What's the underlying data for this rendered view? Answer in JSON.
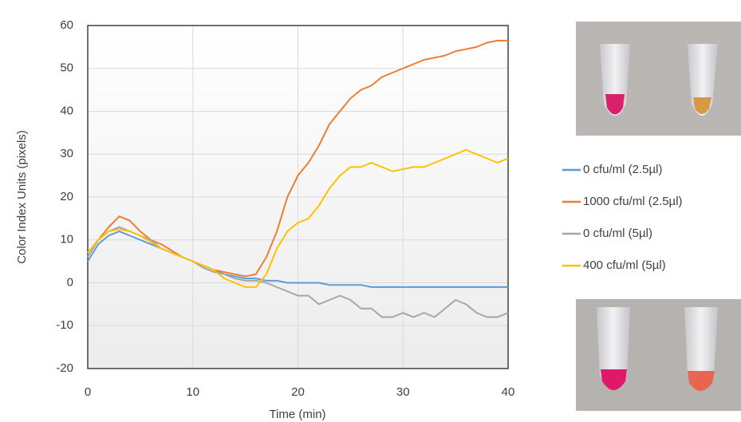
{
  "chart_data": {
    "type": "line",
    "x_label": "Time (min)",
    "y_label": "Color Index Units (pixels)",
    "x": [
      0,
      1,
      2,
      3,
      4,
      5,
      6,
      7,
      8,
      9,
      10,
      11,
      12,
      13,
      14,
      15,
      16,
      17,
      18,
      19,
      20,
      21,
      22,
      23,
      24,
      25,
      26,
      27,
      28,
      29,
      30,
      31,
      32,
      33,
      34,
      35,
      36,
      37,
      38,
      39,
      40
    ],
    "series": [
      {
        "name": "0 cfu/ml (2.5µl)",
        "color": "#5b9bd5",
        "values": [
          5,
          9,
          11,
          12,
          11,
          10,
          9,
          8,
          7,
          6,
          5,
          4,
          3,
          2,
          1.5,
          1,
          1,
          0.5,
          0.5,
          0,
          0,
          0,
          0,
          -0.5,
          -0.5,
          -0.5,
          -0.5,
          -1,
          -1,
          -1,
          -1,
          -1,
          -1,
          -1,
          -1,
          -1,
          -1,
          -1,
          -1,
          -1,
          -1
        ]
      },
      {
        "name": "1000 cfu/ml (2.5µl)",
        "color": "#ed7d31",
        "values": [
          7,
          10,
          13,
          15.5,
          14.5,
          12,
          10,
          9,
          7.5,
          6,
          5,
          4,
          3,
          2.5,
          2,
          1.5,
          2,
          6,
          12,
          20,
          25,
          28,
          32,
          37,
          40,
          43,
          45,
          46,
          48,
          49,
          50,
          51,
          52,
          52.5,
          53,
          54,
          54.5,
          55,
          56,
          56.5,
          56.5
        ]
      },
      {
        "name": "0 cfu/ml (5µl)",
        "color": "#a5a5a5",
        "values": [
          6,
          10,
          12,
          13,
          12,
          11,
          10,
          8,
          7,
          6,
          5,
          3.5,
          2.5,
          2,
          1,
          0.5,
          0.5,
          0,
          -1,
          -2,
          -3,
          -3,
          -5,
          -4,
          -3,
          -4,
          -6,
          -6,
          -8,
          -8,
          -7,
          -8,
          -7,
          -8,
          -6,
          -4,
          -5,
          -7,
          -8,
          -8,
          -7
        ]
      },
      {
        "name": "400 cfu/ml (5µl)",
        "color": "#ffc000",
        "values": [
          7,
          10,
          12,
          12.5,
          12,
          11,
          9.5,
          8,
          7,
          6,
          5,
          4,
          3,
          1,
          0,
          -1,
          -1,
          2,
          8,
          12,
          14,
          15,
          18,
          22,
          25,
          27,
          27,
          28,
          27,
          26,
          26.5,
          27,
          27,
          28,
          29,
          30,
          31,
          30,
          29,
          28,
          29
        ]
      }
    ],
    "xlim": [
      0,
      40
    ],
    "xticks": [
      0,
      10,
      20,
      30,
      40
    ],
    "ylim": [
      -20,
      60
    ],
    "yticks": [
      -20,
      -10,
      0,
      10,
      20,
      30,
      40,
      50,
      60
    ],
    "grid": true,
    "legend": "right"
  }
}
